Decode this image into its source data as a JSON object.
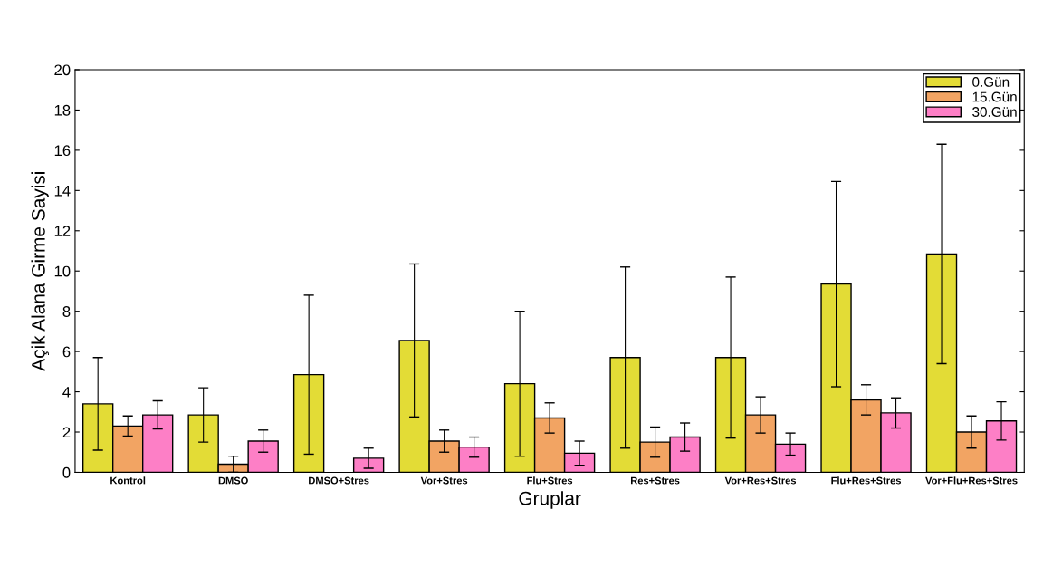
{
  "chart_data": {
    "type": "bar",
    "xlabel": "Gruplar",
    "ylabel": "Açik Alana Girme Sayisi",
    "categories": [
      "Kontrol",
      "DMSO",
      "DMSO+Stres",
      "Vor+Stres",
      "Flu+Stres",
      "Res+Stres",
      "Vor+Res+Stres",
      "Flu+Res+Stres",
      "Vor+Flu+Res+Stres"
    ],
    "series": [
      {
        "name": "0.Gün",
        "color": "#e3dc36",
        "values": [
          3.4,
          2.85,
          4.85,
          6.55,
          4.4,
          5.7,
          5.7,
          9.35,
          10.85
        ],
        "errors": [
          2.3,
          1.35,
          3.95,
          3.8,
          3.6,
          4.5,
          4.0,
          5.1,
          5.45
        ]
      },
      {
        "name": "15.Gün",
        "color": "#f2a463",
        "values": [
          2.3,
          0.4,
          null,
          1.55,
          2.7,
          1.5,
          2.85,
          3.6,
          2.0
        ],
        "errors": [
          0.5,
          0.4,
          null,
          0.55,
          0.75,
          0.75,
          0.9,
          0.75,
          0.8
        ]
      },
      {
        "name": "30.Gün",
        "color": "#fd7fc6",
        "values": [
          2.85,
          1.55,
          0.7,
          1.25,
          0.95,
          1.75,
          1.4,
          2.95,
          2.55
        ],
        "errors": [
          0.7,
          0.55,
          0.5,
          0.5,
          0.6,
          0.7,
          0.55,
          0.75,
          0.95
        ]
      }
    ],
    "ylim": [
      0,
      20
    ],
    "yticks": [
      0,
      2,
      4,
      6,
      8,
      10,
      12,
      14,
      16,
      18,
      20
    ],
    "grid": false,
    "legend": "top right"
  }
}
